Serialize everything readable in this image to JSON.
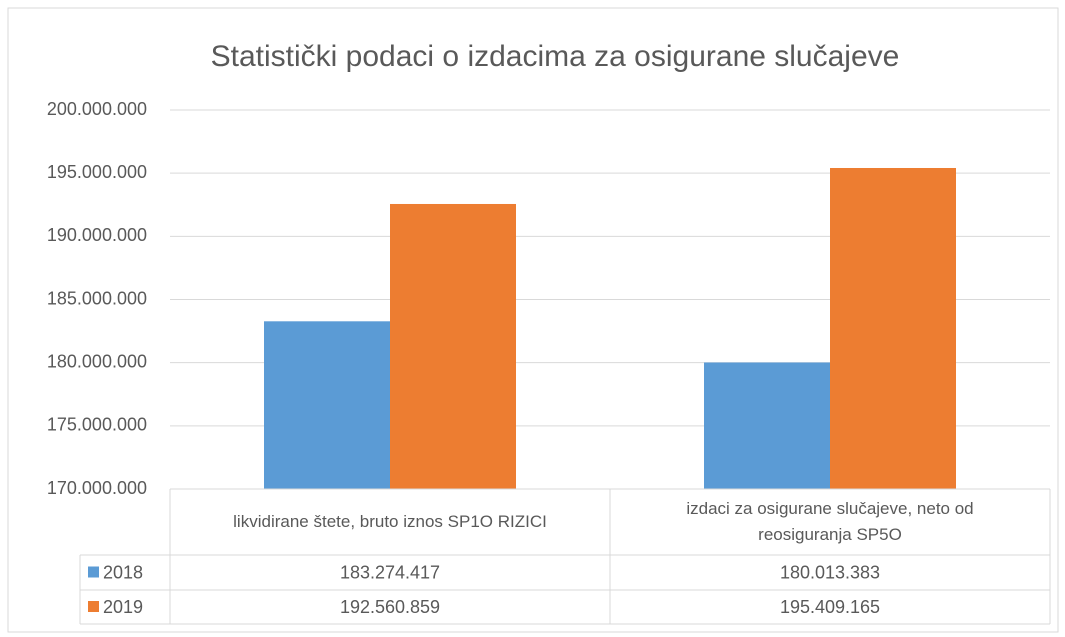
{
  "chart_data": {
    "type": "bar",
    "title": "Statistički podaci o izdacima za osigurane slučajeve",
    "categories": [
      "likvidirane štete, bruto iznos SP1O RIZICI",
      "izdaci za osigurane slučajeve, neto od reosiguranja SP5O"
    ],
    "series": [
      {
        "name": "2018",
        "color": "#5b9bd5",
        "values": [
          183274417,
          180013383
        ],
        "value_labels": [
          "183.274.417",
          "180.013.383"
        ]
      },
      {
        "name": "2019",
        "color": "#ed7d31",
        "values": [
          192560859,
          195409165
        ],
        "value_labels": [
          "192.560.859",
          "195.409.165"
        ]
      }
    ],
    "ylim": [
      170000000,
      200000000
    ],
    "yticks": [
      {
        "value": 170000000,
        "label": "170.000.000"
      },
      {
        "value": 175000000,
        "label": "175.000.000"
      },
      {
        "value": 180000000,
        "label": "180.000.000"
      },
      {
        "value": 185000000,
        "label": "185.000.000"
      },
      {
        "value": 190000000,
        "label": "190.000.000"
      },
      {
        "value": 195000000,
        "label": "195.000.000"
      },
      {
        "value": 200000000,
        "label": "200.000.000"
      }
    ],
    "grid": true
  }
}
